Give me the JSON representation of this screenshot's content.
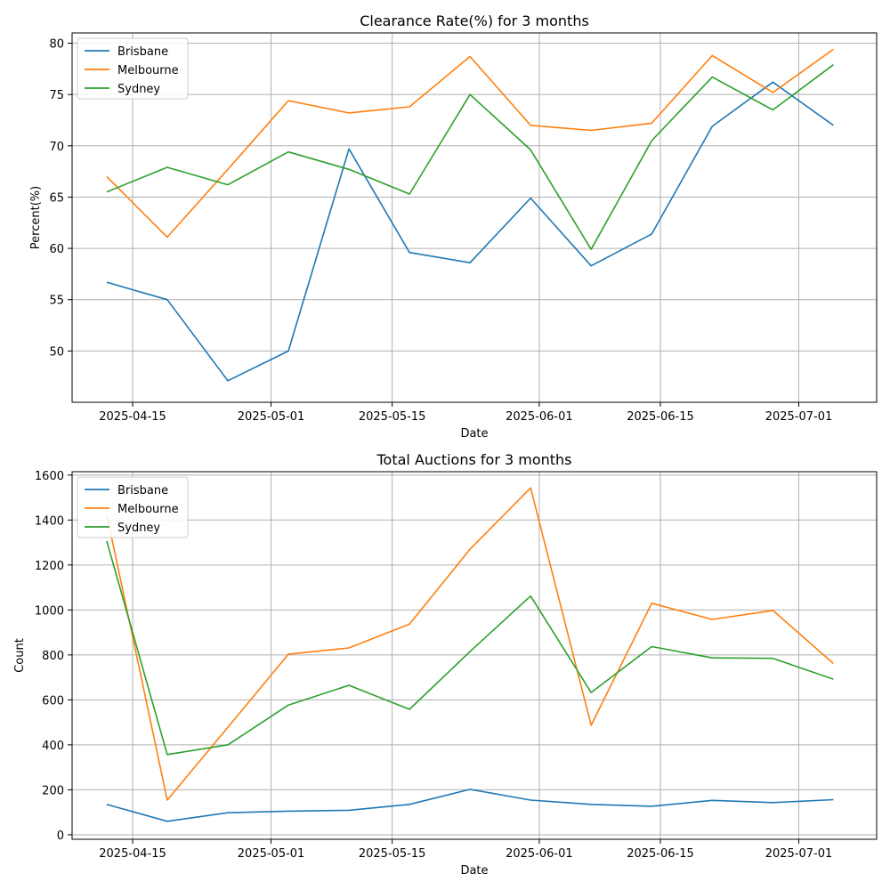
{
  "chart_data": [
    {
      "type": "line",
      "title": "Clearance Rate(%) for 3 months",
      "xlabel": "Date",
      "ylabel": "Percent(%)",
      "x": [
        "2025-04-12",
        "2025-04-19",
        "2025-04-26",
        "2025-05-03",
        "2025-05-10",
        "2025-05-17",
        "2025-05-24",
        "2025-05-31",
        "2025-06-07",
        "2025-06-14",
        "2025-06-21",
        "2025-06-28",
        "2025-07-05"
      ],
      "xtick_labels": [
        "2025-04-15",
        "2025-05-01",
        "2025-05-15",
        "2025-06-01",
        "2025-06-15",
        "2025-07-01"
      ],
      "ylim": [
        45,
        81
      ],
      "yticks": [
        50,
        55,
        60,
        65,
        70,
        75,
        80
      ],
      "grid": true,
      "legend": "top-left",
      "series": [
        {
          "name": "Brisbane",
          "color": "#1f77b4",
          "values": [
            56.7,
            55.0,
            47.1,
            50.0,
            69.7,
            59.6,
            58.6,
            64.9,
            58.3,
            61.4,
            71.9,
            76.2,
            72.0
          ]
        },
        {
          "name": "Melbourne",
          "color": "#ff7f0e",
          "values": [
            67.0,
            61.1,
            67.7,
            74.4,
            73.2,
            73.8,
            78.7,
            72.0,
            71.5,
            72.2,
            78.8,
            75.2,
            79.4
          ]
        },
        {
          "name": "Sydney",
          "color": "#2ca02c",
          "values": [
            65.5,
            67.9,
            66.2,
            69.4,
            67.7,
            65.3,
            75.0,
            69.6,
            59.9,
            70.5,
            76.7,
            73.5,
            77.9
          ]
        }
      ]
    },
    {
      "type": "line",
      "title": "Total Auctions for 3 months",
      "xlabel": "Date",
      "ylabel": "Count",
      "x": [
        "2025-04-12",
        "2025-04-19",
        "2025-04-26",
        "2025-05-03",
        "2025-05-10",
        "2025-05-17",
        "2025-05-24",
        "2025-05-31",
        "2025-06-07",
        "2025-06-14",
        "2025-06-21",
        "2025-06-28",
        "2025-07-05"
      ],
      "xtick_labels": [
        "2025-04-15",
        "2025-05-01",
        "2025-05-15",
        "2025-06-01",
        "2025-06-15",
        "2025-07-01"
      ],
      "ylim": [
        -20,
        1615
      ],
      "yticks": [
        0,
        200,
        400,
        600,
        800,
        1000,
        1200,
        1400,
        1600
      ],
      "grid": true,
      "legend": "top-left",
      "series": [
        {
          "name": "Brisbane",
          "color": "#1f77b4",
          "values": [
            135,
            60,
            98,
            105,
            109,
            135,
            202,
            154,
            135,
            127,
            153,
            143,
            156
          ]
        },
        {
          "name": "Melbourne",
          "color": "#ff7f0e",
          "values": [
            1425,
            154,
            478,
            803,
            831,
            937,
            1270,
            1543,
            487,
            1030,
            958,
            998,
            762
          ]
        },
        {
          "name": "Sydney",
          "color": "#2ca02c",
          "values": [
            1307,
            357,
            400,
            577,
            665,
            558,
            815,
            1062,
            633,
            837,
            787,
            785,
            692
          ]
        }
      ]
    }
  ]
}
